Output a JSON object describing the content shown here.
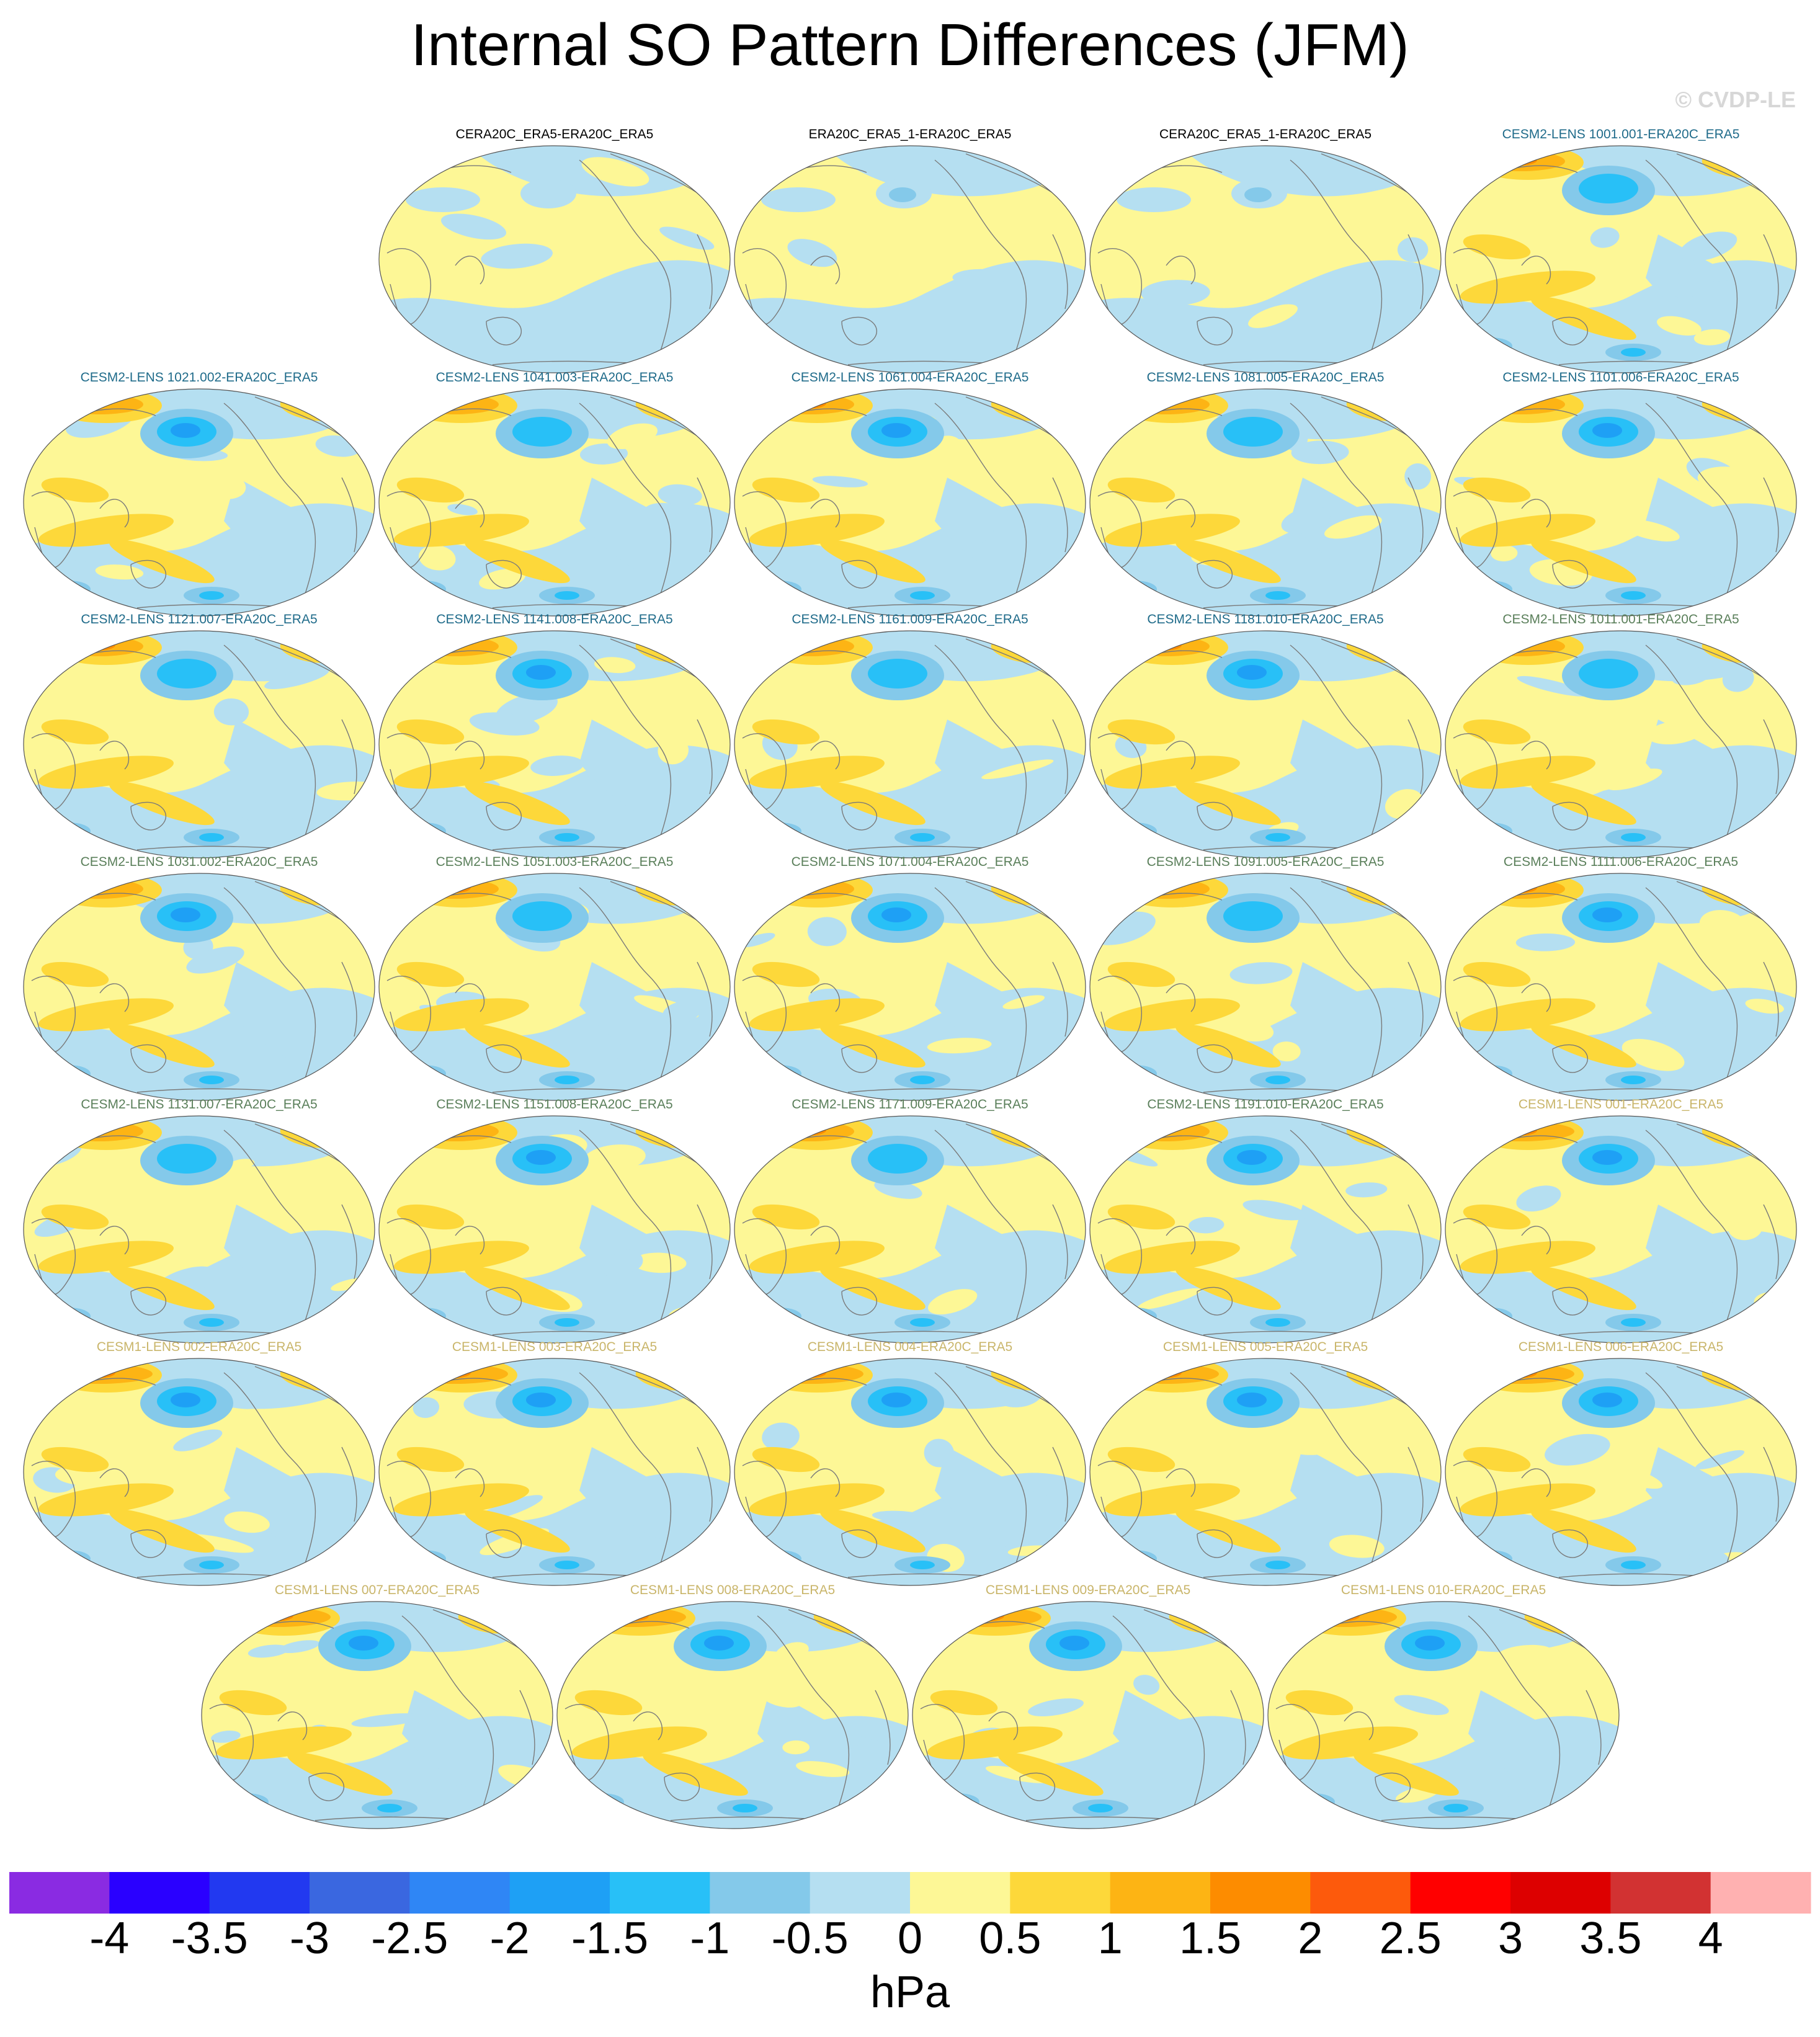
{
  "title": "Internal SO Pattern Differences (JFM)",
  "copyright": "© CVDP-LE",
  "colors": {
    "title_obs": "#000000",
    "title_cesm2_a": "#1f6b8a",
    "title_cesm2_b": "#5a7f5a",
    "title_cesm1": "#c9b56a",
    "coast": "#7a7a7a"
  },
  "panels": [
    {
      "label": "CERA20C_ERA5-ERA20C_ERA5",
      "group": "obs"
    },
    {
      "label": "ERA20C_ERA5_1-ERA20C_ERA5",
      "group": "obs"
    },
    {
      "label": "CERA20C_ERA5_1-ERA20C_ERA5",
      "group": "obs"
    },
    {
      "label": "CESM2-LENS 1001.001-ERA20C_ERA5",
      "group": "cesm2_a"
    },
    {
      "label": "CESM2-LENS 1021.002-ERA20C_ERA5",
      "group": "cesm2_a"
    },
    {
      "label": "CESM2-LENS 1041.003-ERA20C_ERA5",
      "group": "cesm2_a"
    },
    {
      "label": "CESM2-LENS 1061.004-ERA20C_ERA5",
      "group": "cesm2_a"
    },
    {
      "label": "CESM2-LENS 1081.005-ERA20C_ERA5",
      "group": "cesm2_a"
    },
    {
      "label": "CESM2-LENS 1101.006-ERA20C_ERA5",
      "group": "cesm2_a"
    },
    {
      "label": "CESM2-LENS 1121.007-ERA20C_ERA5",
      "group": "cesm2_a"
    },
    {
      "label": "CESM2-LENS 1141.008-ERA20C_ERA5",
      "group": "cesm2_a"
    },
    {
      "label": "CESM2-LENS 1161.009-ERA20C_ERA5",
      "group": "cesm2_a"
    },
    {
      "label": "CESM2-LENS 1181.010-ERA20C_ERA5",
      "group": "cesm2_a"
    },
    {
      "label": "CESM2-LENS 1011.001-ERA20C_ERA5",
      "group": "cesm2_b"
    },
    {
      "label": "CESM2-LENS 1031.002-ERA20C_ERA5",
      "group": "cesm2_b"
    },
    {
      "label": "CESM2-LENS 1051.003-ERA20C_ERA5",
      "group": "cesm2_b"
    },
    {
      "label": "CESM2-LENS 1071.004-ERA20C_ERA5",
      "group": "cesm2_b"
    },
    {
      "label": "CESM2-LENS 1091.005-ERA20C_ERA5",
      "group": "cesm2_b"
    },
    {
      "label": "CESM2-LENS 1111.006-ERA20C_ERA5",
      "group": "cesm2_b"
    },
    {
      "label": "CESM2-LENS 1131.007-ERA20C_ERA5",
      "group": "cesm2_b"
    },
    {
      "label": "CESM2-LENS 1151.008-ERA20C_ERA5",
      "group": "cesm2_b"
    },
    {
      "label": "CESM2-LENS 1171.009-ERA20C_ERA5",
      "group": "cesm2_b"
    },
    {
      "label": "CESM2-LENS 1191.010-ERA20C_ERA5",
      "group": "cesm2_b"
    },
    {
      "label": "CESM1-LENS 001-ERA20C_ERA5",
      "group": "cesm1"
    },
    {
      "label": "CESM1-LENS 002-ERA20C_ERA5",
      "group": "cesm1"
    },
    {
      "label": "CESM1-LENS 003-ERA20C_ERA5",
      "group": "cesm1"
    },
    {
      "label": "CESM1-LENS 004-ERA20C_ERA5",
      "group": "cesm1"
    },
    {
      "label": "CESM1-LENS 005-ERA20C_ERA5",
      "group": "cesm1"
    },
    {
      "label": "CESM1-LENS 006-ERA20C_ERA5",
      "group": "cesm1"
    },
    {
      "label": "CESM1-LENS 007-ERA20C_ERA5",
      "group": "cesm1"
    },
    {
      "label": "CESM1-LENS 008-ERA20C_ERA5",
      "group": "cesm1"
    },
    {
      "label": "CESM1-LENS 009-ERA20C_ERA5",
      "group": "cesm1"
    },
    {
      "label": "CESM1-LENS 010-ERA20C_ERA5",
      "group": "cesm1"
    }
  ],
  "colorbar": {
    "levels": [
      "-4",
      "-3.5",
      "-3",
      "-2.5",
      "-2",
      "-1.5",
      "-1",
      "-0.5",
      "0",
      "0.5",
      "1",
      "1.5",
      "2",
      "2.5",
      "3",
      "3.5",
      "4"
    ],
    "colors": [
      "#8a2be2",
      "#2a00ff",
      "#2239f0",
      "#3a67e0",
      "#2f86f5",
      "#1ea0f5",
      "#28c0f7",
      "#84c9ea",
      "#b5dff1",
      "#fdf796",
      "#fdd83a",
      "#fdb414",
      "#fd8c00",
      "#fd5a0c",
      "#ff0000",
      "#dd0000",
      "#d23232",
      "#ffb1b1"
    ],
    "units": "hPa"
  }
}
